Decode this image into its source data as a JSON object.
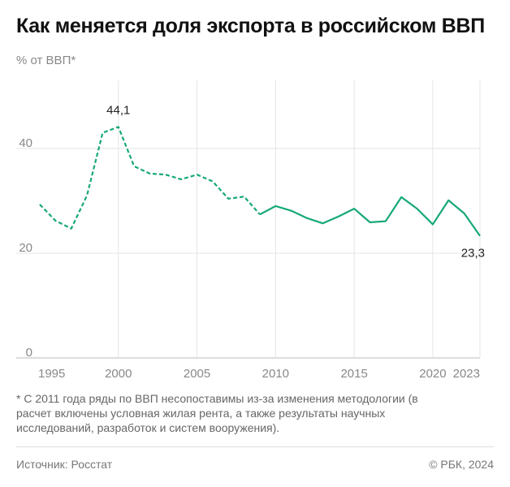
{
  "chart_data": {
    "type": "line",
    "title": "Как меняется доля экспорта в российском ВВП",
    "subtitle": "% от ВВП*",
    "x": [
      1995,
      1996,
      1997,
      1998,
      1999,
      2000,
      2001,
      2002,
      2003,
      2004,
      2005,
      2006,
      2007,
      2008,
      2009,
      2010,
      2011,
      2012,
      2013,
      2014,
      2015,
      2016,
      2017,
      2018,
      2019,
      2020,
      2021,
      2022,
      2023
    ],
    "series": [
      {
        "color": "#16a878",
        "dashed": true,
        "values": [
          29.3,
          26.2,
          24.7,
          31.0,
          43.0,
          44.1,
          36.6,
          35.2,
          35.0,
          34.1,
          35.0,
          33.7,
          30.4,
          30.8,
          27.4,
          null,
          null,
          null,
          null,
          null,
          null,
          null,
          null,
          null,
          null,
          null,
          null,
          null,
          null
        ]
      },
      {
        "color": "#16a878",
        "dashed": false,
        "values": [
          null,
          null,
          null,
          null,
          null,
          null,
          null,
          null,
          null,
          null,
          null,
          null,
          null,
          null,
          27.4,
          29.0,
          28.1,
          26.7,
          25.7,
          27.0,
          28.5,
          25.9,
          26.1,
          30.7,
          28.5,
          25.5,
          30.1,
          27.6,
          23.3
        ]
      }
    ],
    "annotations": [
      {
        "x": 2000,
        "value": 44.1,
        "label": "44,1"
      },
      {
        "x": 2023,
        "value": 23.3,
        "label": "23,3"
      }
    ],
    "xlim": [
      1995,
      2023
    ],
    "xticks": [
      1995,
      2000,
      2005,
      2010,
      2015,
      2020,
      2023
    ],
    "ylim": [
      0,
      53
    ],
    "yticks": [
      0,
      20,
      40
    ],
    "grid": true,
    "footnote": "* С 2011 года ряды по ВВП несопоставимы из-за изменения методологии (в расчет включены условная жилая рента, а также результаты научных исследований, разработок и систем вооружения).",
    "source": "Источник: Росстат",
    "credit": "© РБК, 2024"
  }
}
